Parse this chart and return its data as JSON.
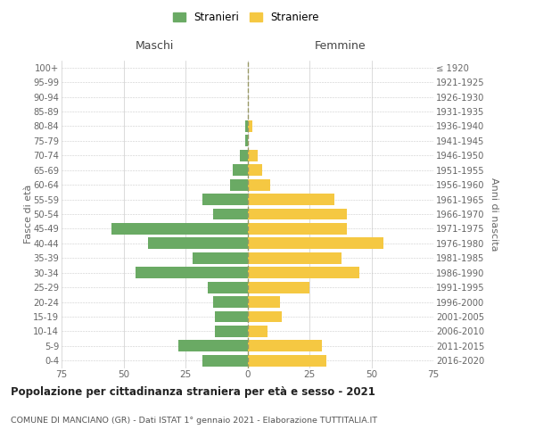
{
  "age_groups": [
    "0-4",
    "5-9",
    "10-14",
    "15-19",
    "20-24",
    "25-29",
    "30-34",
    "35-39",
    "40-44",
    "45-49",
    "50-54",
    "55-59",
    "60-64",
    "65-69",
    "70-74",
    "75-79",
    "80-84",
    "85-89",
    "90-94",
    "95-99",
    "100+"
  ],
  "birth_years": [
    "2016-2020",
    "2011-2015",
    "2006-2010",
    "2001-2005",
    "1996-2000",
    "1991-1995",
    "1986-1990",
    "1981-1985",
    "1976-1980",
    "1971-1975",
    "1966-1970",
    "1961-1965",
    "1956-1960",
    "1951-1955",
    "1946-1950",
    "1941-1945",
    "1936-1940",
    "1931-1935",
    "1926-1930",
    "1921-1925",
    "≤ 1920"
  ],
  "maschi": [
    18,
    28,
    13,
    13,
    14,
    16,
    45,
    22,
    40,
    55,
    14,
    18,
    7,
    6,
    3,
    1,
    1,
    0,
    0,
    0,
    0
  ],
  "femmine": [
    32,
    30,
    8,
    14,
    13,
    25,
    45,
    38,
    55,
    40,
    40,
    35,
    9,
    6,
    4,
    0,
    2,
    0,
    0,
    0,
    0
  ],
  "color_maschi": "#6aaa64",
  "color_femmine": "#f5c842",
  "title": "Popolazione per cittadinanza straniera per età e sesso - 2021",
  "subtitle": "COMUNE DI MANCIANO (GR) - Dati ISTAT 1° gennaio 2021 - Elaborazione TUTTITALIA.IT",
  "xlabel_left": "Maschi",
  "xlabel_right": "Femmine",
  "ylabel_left": "Fasce di età",
  "ylabel_right": "Anni di nascita",
  "legend_maschi": "Stranieri",
  "legend_femmine": "Straniere",
  "xlim": 75,
  "background_color": "#ffffff",
  "grid_color": "#cccccc"
}
